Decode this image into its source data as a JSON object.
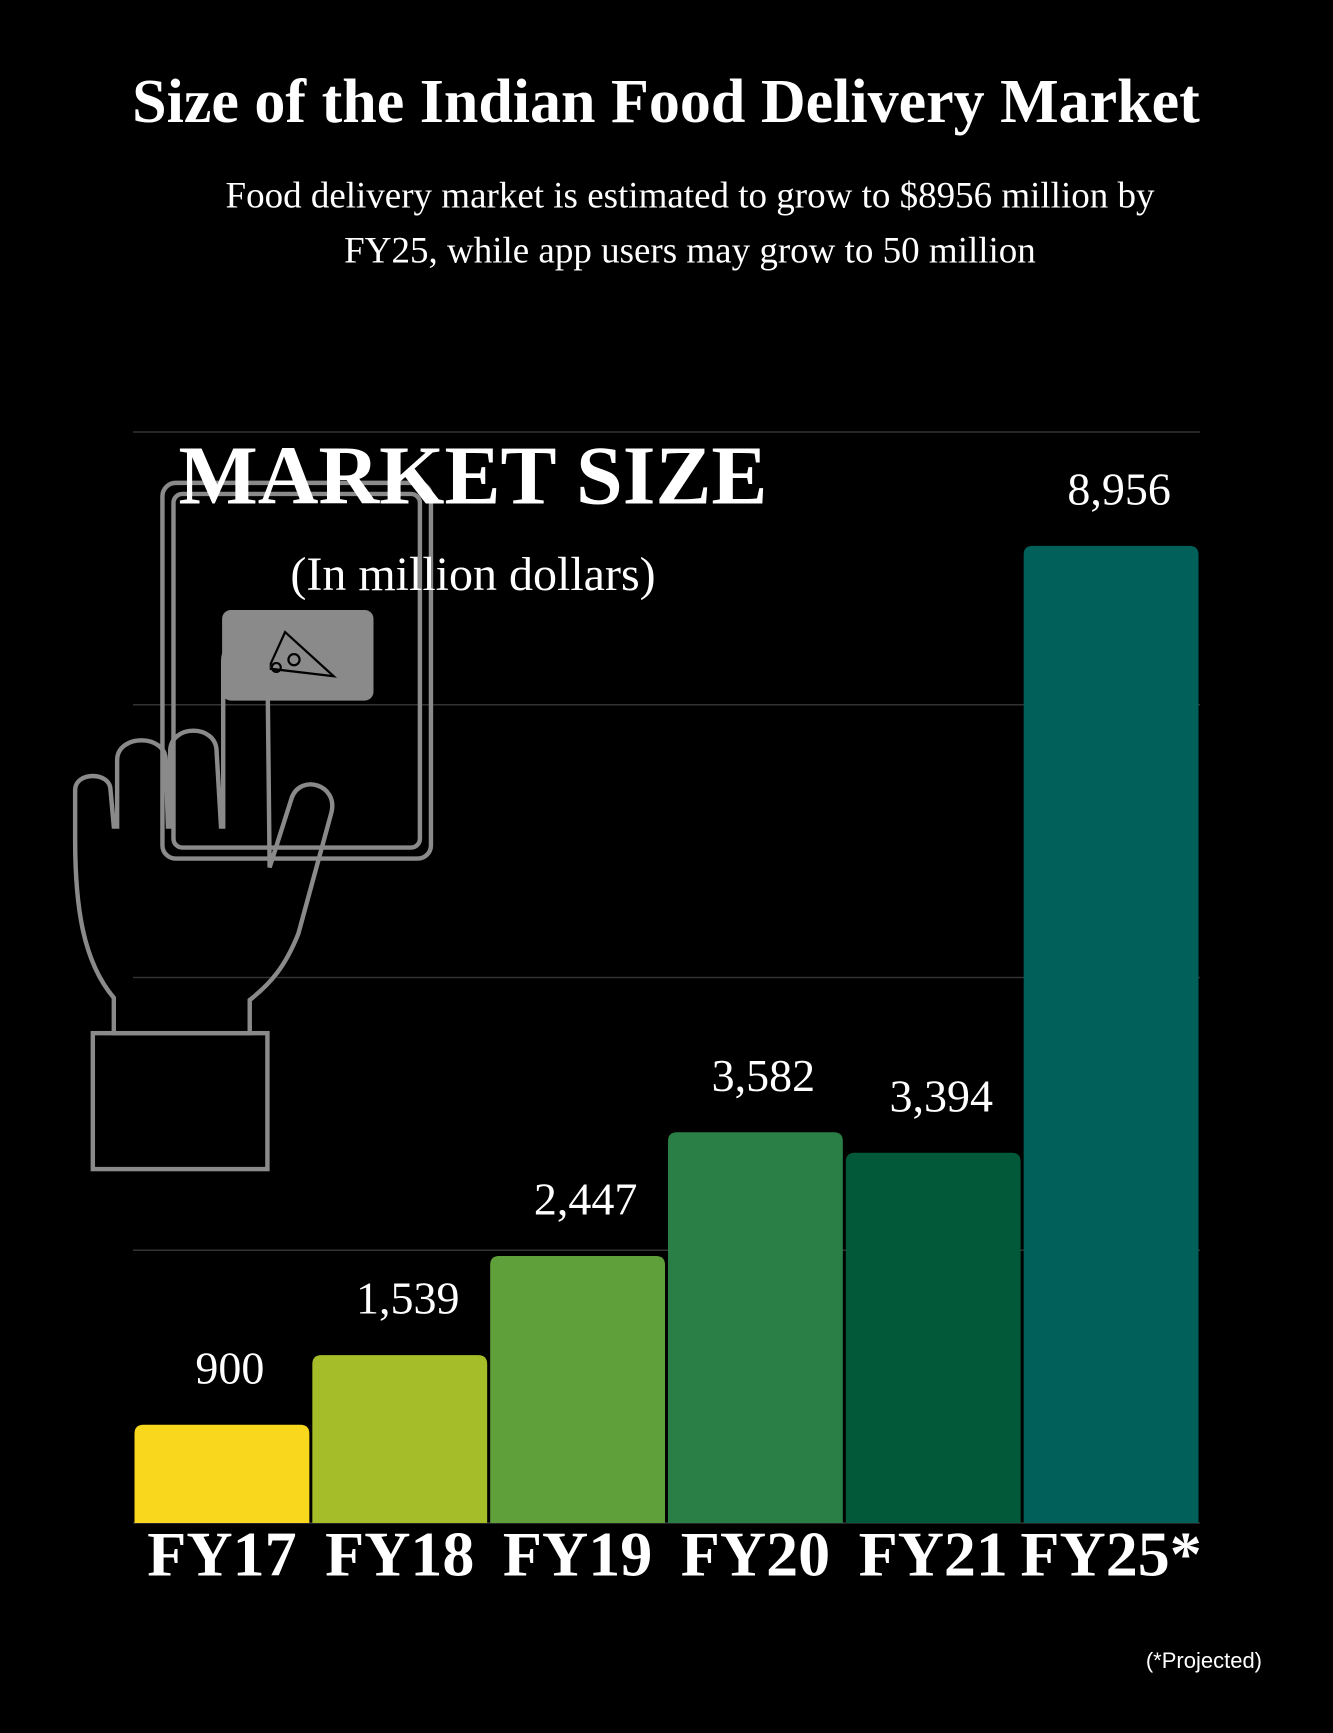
{
  "chart_data": {
    "type": "bar",
    "title": "Size of the Indian Food Delivery Market",
    "subtitle": [
      "Food delivery market is estimated to grow to $8956 million by",
      "FY25, while app users may grow to 50 million"
    ],
    "annotation": "MARKET SIZE",
    "annotation_unit": "(In million dollars)",
    "footnote": "(*Projected)",
    "categories": [
      "FY17",
      "FY18",
      "FY19",
      "FY20",
      "FY21",
      "FY25*"
    ],
    "values": [
      900,
      1539,
      2447,
      3582,
      3394,
      8956
    ],
    "value_labels": [
      "900",
      "1,539",
      "2,447",
      "3,582",
      "3,394",
      "8,956"
    ],
    "colors": [
      "#f9d71c",
      "#a6bd2a",
      "#5fa03a",
      "#2a7f47",
      "#02593a",
      "#02605a"
    ],
    "ylim": [
      0,
      10000
    ],
    "yticks": [
      0,
      2500,
      5000,
      7500,
      10000
    ],
    "grid": true
  }
}
